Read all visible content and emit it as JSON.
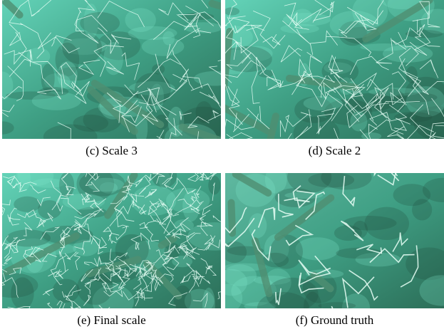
{
  "panels": [
    {
      "caption": "(c) Scale 3"
    },
    {
      "caption": "(d) Scale 2"
    },
    {
      "caption": "(e) Final scale"
    },
    {
      "caption": "(f) Ground truth"
    }
  ]
}
